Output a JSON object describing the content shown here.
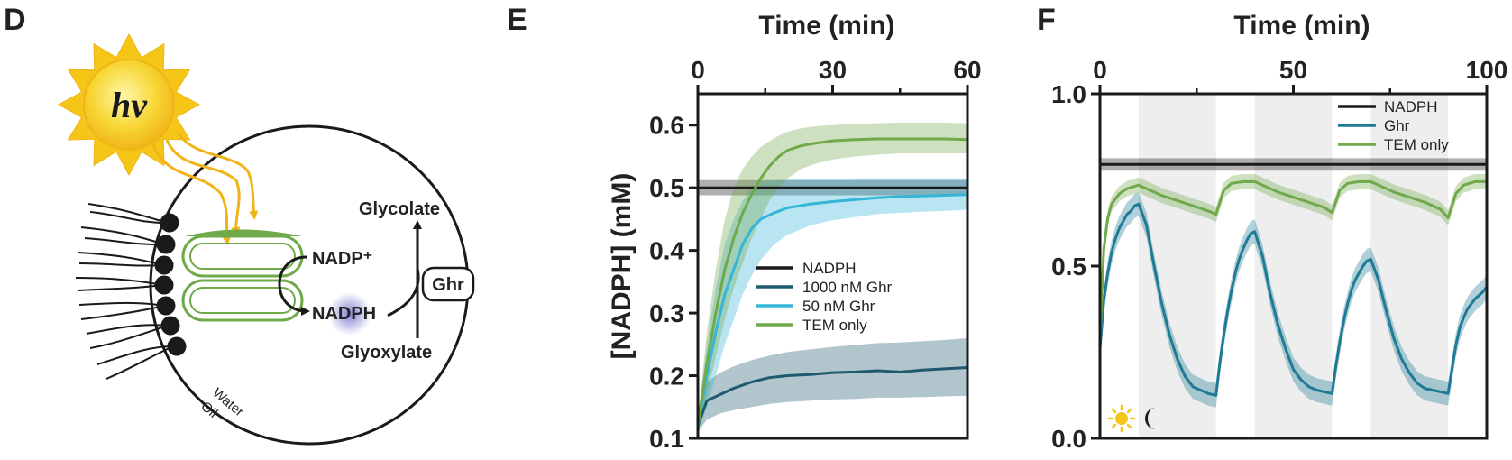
{
  "panels": {
    "d": "D",
    "e": "E",
    "f": "F"
  },
  "diagram": {
    "sun_label": "hν",
    "nadp_plus": "NADP⁺",
    "nadph": "NADPH",
    "glycolate": "Glycolate",
    "glyoxylate": "Glyoxylate",
    "ghr": "Ghr",
    "water": "Water",
    "oil": "Oil"
  },
  "colors": {
    "nadph": "#1a1a1a",
    "ghr_1000": "#1f5a6e",
    "ghr_50": "#35b5d8",
    "tem": "#6fa94a",
    "ghr_f": "#1f7a96",
    "light_band": "#eeeeee",
    "sun": "#f5c518"
  },
  "chart_data": [
    {
      "type": "line",
      "x_title": "Time (min)",
      "ylabel": "[NADPH] (mM)",
      "xlim": [
        0,
        60
      ],
      "ylim": [
        0.1,
        0.65
      ],
      "xticks": [
        0,
        30,
        60
      ],
      "xminor": [
        15,
        45
      ],
      "yticks": [
        0.1,
        0.2,
        0.3,
        0.4,
        0.5,
        0.6
      ],
      "ytick_labels": [
        "0.1",
        "0.2",
        "0.3",
        "0.4",
        "0.5",
        "0.6"
      ],
      "xtick_labels": [
        "0",
        "30",
        "60"
      ],
      "legend": [
        "NADPH",
        "1000 nM Ghr",
        "50 nM Ghr",
        "TEM only"
      ],
      "series": [
        {
          "name": "NADPH",
          "x": [
            0,
            60
          ],
          "values": [
            0.5,
            0.5
          ],
          "band": 0.012
        },
        {
          "name": "1000 nM Ghr",
          "x": [
            0,
            1,
            2,
            5,
            8,
            12,
            16,
            20,
            25,
            30,
            35,
            40,
            45,
            50,
            55,
            60
          ],
          "values": [
            0.12,
            0.14,
            0.16,
            0.17,
            0.18,
            0.19,
            0.197,
            0.2,
            0.202,
            0.205,
            0.206,
            0.208,
            0.206,
            0.209,
            0.211,
            0.213
          ],
          "lower": [
            0.11,
            0.12,
            0.13,
            0.14,
            0.145,
            0.15,
            0.155,
            0.158,
            0.16,
            0.162,
            0.163,
            0.165,
            0.165,
            0.166,
            0.167,
            0.168
          ],
          "upper": [
            0.13,
            0.16,
            0.19,
            0.205,
            0.215,
            0.225,
            0.232,
            0.238,
            0.242,
            0.246,
            0.249,
            0.252,
            0.253,
            0.255,
            0.257,
            0.26
          ]
        },
        {
          "name": "50 nM Ghr",
          "x": [
            0,
            2,
            4,
            6,
            8,
            10,
            12,
            14,
            17,
            20,
            25,
            30,
            35,
            40,
            45,
            50,
            55,
            60
          ],
          "values": [
            0.12,
            0.2,
            0.27,
            0.33,
            0.37,
            0.41,
            0.435,
            0.45,
            0.46,
            0.468,
            0.474,
            0.478,
            0.481,
            0.484,
            0.486,
            0.487,
            0.488,
            0.489
          ],
          "lower": [
            0.11,
            0.15,
            0.2,
            0.25,
            0.29,
            0.33,
            0.36,
            0.385,
            0.41,
            0.425,
            0.44,
            0.448,
            0.453,
            0.458,
            0.46,
            0.462,
            0.463,
            0.465
          ],
          "upper": [
            0.13,
            0.25,
            0.34,
            0.41,
            0.45,
            0.48,
            0.5,
            0.51,
            0.512,
            0.513,
            0.514,
            0.514,
            0.515,
            0.515,
            0.515,
            0.515,
            0.515,
            0.515
          ]
        },
        {
          "name": "TEM only",
          "x": [
            0,
            2,
            4,
            6,
            8,
            10,
            12,
            14,
            16,
            18,
            20,
            23,
            26,
            30,
            35,
            40,
            45,
            50,
            55,
            60
          ],
          "values": [
            0.12,
            0.22,
            0.3,
            0.37,
            0.42,
            0.46,
            0.49,
            0.515,
            0.535,
            0.55,
            0.56,
            0.567,
            0.571,
            0.575,
            0.577,
            0.578,
            0.578,
            0.578,
            0.578,
            0.577
          ],
          "lower": [
            0.11,
            0.17,
            0.23,
            0.29,
            0.34,
            0.38,
            0.42,
            0.45,
            0.48,
            0.5,
            0.515,
            0.53,
            0.538,
            0.545,
            0.55,
            0.553,
            0.555,
            0.555,
            0.555,
            0.555
          ],
          "upper": [
            0.13,
            0.27,
            0.37,
            0.45,
            0.5,
            0.53,
            0.55,
            0.565,
            0.575,
            0.583,
            0.59,
            0.595,
            0.598,
            0.6,
            0.602,
            0.603,
            0.604,
            0.604,
            0.604,
            0.603
          ]
        }
      ]
    },
    {
      "type": "line",
      "x_title": "Time (min)",
      "xlim": [
        0,
        100
      ],
      "ylim": [
        0,
        1
      ],
      "xticks": [
        0,
        50,
        100
      ],
      "xminor": [
        25,
        75
      ],
      "yticks": [
        0,
        0.5,
        1
      ],
      "ytick_labels": [
        "0.0",
        "0.5",
        "1.0"
      ],
      "xtick_labels": [
        "0",
        "50",
        "100"
      ],
      "light_dark_cycles": [
        [
          10,
          30
        ],
        [
          40,
          60
        ],
        [
          70,
          90
        ]
      ],
      "legend": [
        "NADPH",
        "Ghr",
        "TEM only"
      ],
      "series": [
        {
          "name": "NADPH",
          "x": [
            0,
            100
          ],
          "values": [
            0.795,
            0.795
          ],
          "band": 0.018
        },
        {
          "name": "Ghr",
          "x": [
            0,
            1,
            2,
            3,
            4,
            5,
            6,
            7,
            8,
            9,
            10,
            12,
            14,
            16,
            18,
            20,
            22,
            24,
            26,
            28,
            30,
            31,
            32,
            33,
            34,
            35,
            36,
            37,
            38,
            39,
            40,
            42,
            44,
            46,
            48,
            50,
            52,
            54,
            56,
            58,
            60,
            61,
            62,
            63,
            64,
            65,
            66,
            67,
            68,
            69,
            70,
            72,
            74,
            76,
            78,
            80,
            82,
            84,
            86,
            88,
            90,
            91,
            92,
            93,
            94,
            95,
            96,
            97,
            98,
            99,
            100
          ],
          "values": [
            0.26,
            0.4,
            0.48,
            0.54,
            0.58,
            0.61,
            0.63,
            0.65,
            0.66,
            0.675,
            0.68,
            0.62,
            0.5,
            0.39,
            0.3,
            0.23,
            0.18,
            0.15,
            0.14,
            0.13,
            0.125,
            0.22,
            0.3,
            0.37,
            0.43,
            0.48,
            0.52,
            0.55,
            0.575,
            0.595,
            0.6,
            0.53,
            0.42,
            0.33,
            0.26,
            0.2,
            0.17,
            0.15,
            0.14,
            0.135,
            0.13,
            0.21,
            0.28,
            0.34,
            0.39,
            0.43,
            0.46,
            0.48,
            0.5,
            0.515,
            0.52,
            0.46,
            0.37,
            0.29,
            0.23,
            0.19,
            0.16,
            0.145,
            0.14,
            0.135,
            0.13,
            0.2,
            0.27,
            0.32,
            0.35,
            0.375,
            0.39,
            0.405,
            0.415,
            0.425,
            0.44
          ],
          "band": 0.035
        },
        {
          "name": "TEM only",
          "x": [
            0,
            1,
            2,
            3,
            5,
            7,
            10,
            13,
            16,
            20,
            24,
            28,
            30,
            32,
            34,
            37,
            40,
            43,
            46,
            50,
            54,
            58,
            60,
            62,
            64,
            67,
            70,
            73,
            76,
            80,
            84,
            88,
            90,
            92,
            94,
            97,
            100
          ],
          "values": [
            0.3,
            0.55,
            0.64,
            0.68,
            0.71,
            0.725,
            0.735,
            0.72,
            0.705,
            0.69,
            0.675,
            0.66,
            0.65,
            0.72,
            0.74,
            0.745,
            0.745,
            0.73,
            0.715,
            0.7,
            0.685,
            0.67,
            0.655,
            0.72,
            0.74,
            0.745,
            0.745,
            0.73,
            0.715,
            0.7,
            0.685,
            0.665,
            0.64,
            0.71,
            0.735,
            0.745,
            0.745
          ],
          "band": 0.022
        }
      ]
    }
  ]
}
